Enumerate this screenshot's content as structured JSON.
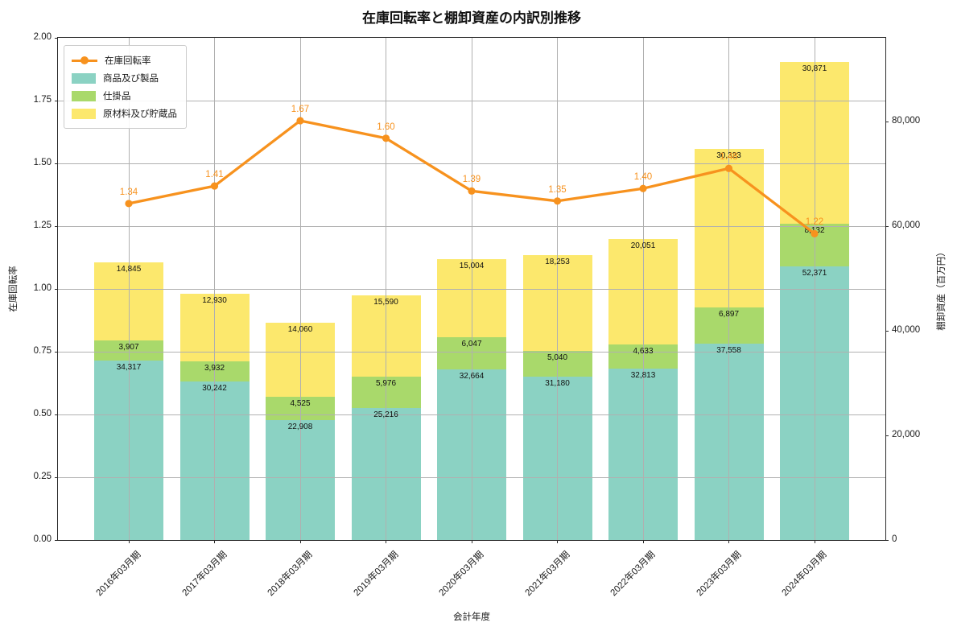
{
  "chart_data": {
    "type": "bar",
    "subtype": "stacked-bars-with-line-overlay",
    "title": "在庫回転率と棚卸資産の内訳別推移",
    "xlabel": "会計年度",
    "ylabel_left": "在庫回転率",
    "ylabel_right": "棚卸資産（百万円）",
    "categories": [
      "2016年03月期",
      "2017年03月期",
      "2018年03月期",
      "2019年03月期",
      "2020年03月期",
      "2021年03月期",
      "2022年03月期",
      "2023年03月期",
      "2024年03月期"
    ],
    "bar_series": [
      {
        "name": "商品及び製品",
        "color": "#8bd2c3",
        "values": [
          34317,
          30242,
          22908,
          25216,
          32664,
          31180,
          32813,
          37558,
          52371
        ]
      },
      {
        "name": "仕掛品",
        "color": "#a9d96b",
        "values": [
          3907,
          3932,
          4525,
          5976,
          6047,
          5040,
          4633,
          6897,
          8132
        ]
      },
      {
        "name": "原材料及び貯蔵品",
        "color": "#fce86d",
        "values": [
          14845,
          12930,
          14060,
          15590,
          15004,
          18253,
          20051,
          30323,
          30871
        ]
      }
    ],
    "line_series": {
      "name": "在庫回転率",
      "color": "#f7921e",
      "values": [
        1.34,
        1.41,
        1.67,
        1.6,
        1.39,
        1.35,
        1.4,
        1.48,
        1.22
      ]
    },
    "axes": {
      "left": {
        "min": 0,
        "max": 2.0,
        "tick_labels": [
          "0.00",
          "0.25",
          "0.50",
          "0.75",
          "1.00",
          "1.25",
          "1.50",
          "1.75",
          "2.00"
        ],
        "tick_values": [
          0,
          0.25,
          0.5,
          0.75,
          1.0,
          1.25,
          1.5,
          1.75,
          2.0
        ]
      },
      "right": {
        "min": 0,
        "max": 96000,
        "tick_values": [
          0,
          20000,
          40000,
          60000,
          80000
        ]
      }
    },
    "grid": true,
    "legend_position": "upper left",
    "legend_entries": [
      "在庫回転率",
      "商品及び製品",
      "仕掛品",
      "原材料及び貯蔵品"
    ]
  },
  "colors": {
    "grid": "#b0b0b0",
    "spine": "#2b2b2b",
    "text": "#1a1a1a",
    "background": "#ffffff"
  }
}
